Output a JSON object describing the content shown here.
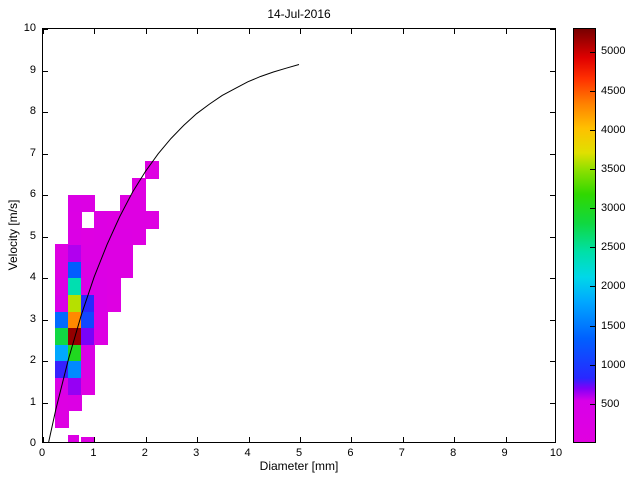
{
  "chart_data": {
    "type": "heatmap",
    "title": "14-Jul-2016",
    "xlabel": "Diameter [mm]",
    "ylabel": "Velocity [m/s]",
    "xlim": [
      0,
      10
    ],
    "ylim": [
      0,
      10
    ],
    "xticks": [
      0,
      1,
      2,
      3,
      4,
      5,
      6,
      7,
      8,
      9,
      10
    ],
    "yticks": [
      0,
      1,
      2,
      3,
      4,
      5,
      6,
      7,
      8,
      9,
      10
    ],
    "grid": false,
    "legend": "colorbar-right",
    "curve_name": "terminal-velocity-curve",
    "curve_color": "#000000",
    "curve_points": [
      [
        0.11,
        0.0
      ],
      [
        0.25,
        0.79
      ],
      [
        0.5,
        2.02
      ],
      [
        0.75,
        3.08
      ],
      [
        1.0,
        4.0
      ],
      [
        1.25,
        4.78
      ],
      [
        1.5,
        5.46
      ],
      [
        1.75,
        6.05
      ],
      [
        2.0,
        6.55
      ],
      [
        2.25,
        6.98
      ],
      [
        2.5,
        7.35
      ],
      [
        2.75,
        7.67
      ],
      [
        3.0,
        7.95
      ],
      [
        3.25,
        8.18
      ],
      [
        3.5,
        8.39
      ],
      [
        3.75,
        8.56
      ],
      [
        4.0,
        8.72
      ],
      [
        4.25,
        8.85
      ],
      [
        4.5,
        8.96
      ],
      [
        4.75,
        9.05
      ],
      [
        5.0,
        9.14
      ]
    ],
    "colorbar": {
      "vmin": 0,
      "vmax": 5300,
      "ticks": [
        500,
        1000,
        1500,
        2000,
        2500,
        3000,
        3500,
        4000,
        4500,
        5000
      ],
      "stops": [
        [
          0.0,
          "#E000E0"
        ],
        [
          0.1,
          "#D800E8"
        ],
        [
          0.13,
          "#8000F8"
        ],
        [
          0.155,
          "#2828FF"
        ],
        [
          0.25,
          "#0060FF"
        ],
        [
          0.34,
          "#00A8FF"
        ],
        [
          0.4,
          "#00D8E8"
        ],
        [
          0.46,
          "#00E0A8"
        ],
        [
          0.53,
          "#10D840"
        ],
        [
          0.6,
          "#30D800"
        ],
        [
          0.66,
          "#90E000"
        ],
        [
          0.7,
          "#E0E000"
        ],
        [
          0.76,
          "#FFC000"
        ],
        [
          0.82,
          "#FF8000"
        ],
        [
          0.88,
          "#FF3000"
        ],
        [
          0.93,
          "#E00000"
        ],
        [
          1.0,
          "#780000"
        ]
      ]
    },
    "cells": [
      [
        0.25,
        0.4,
        0.25,
        0.4,
        120
      ],
      [
        0.25,
        0.8,
        0.25,
        0.4,
        200
      ],
      [
        0.25,
        1.2,
        0.25,
        0.4,
        400
      ],
      [
        0.25,
        1.6,
        0.25,
        0.4,
        800
      ],
      [
        0.25,
        2.0,
        0.25,
        0.4,
        1800
      ],
      [
        0.25,
        2.4,
        0.25,
        0.4,
        2800
      ],
      [
        0.25,
        2.8,
        0.25,
        0.4,
        1400
      ],
      [
        0.25,
        3.2,
        0.25,
        0.4,
        500
      ],
      [
        0.25,
        3.6,
        0.25,
        0.4,
        260
      ],
      [
        0.25,
        4.0,
        0.25,
        0.4,
        160
      ],
      [
        0.25,
        4.4,
        0.25,
        0.4,
        120
      ],
      [
        0.5,
        0.0,
        0.2,
        0.2,
        260
      ],
      [
        0.5,
        0.8,
        0.25,
        0.4,
        260
      ],
      [
        0.5,
        1.2,
        0.25,
        0.4,
        650
      ],
      [
        0.5,
        1.6,
        0.25,
        0.4,
        1600
      ],
      [
        0.5,
        2.0,
        0.25,
        0.4,
        3000
      ],
      [
        0.5,
        2.4,
        0.25,
        0.4,
        5200
      ],
      [
        0.5,
        2.8,
        0.25,
        0.4,
        4300
      ],
      [
        0.5,
        3.2,
        0.25,
        0.4,
        3600
      ],
      [
        0.5,
        3.6,
        0.25,
        0.4,
        2400
      ],
      [
        0.5,
        4.0,
        0.25,
        0.4,
        1300
      ],
      [
        0.5,
        4.4,
        0.25,
        0.4,
        600
      ],
      [
        0.5,
        4.8,
        0.25,
        0.4,
        320
      ],
      [
        0.5,
        5.2,
        0.25,
        0.4,
        260
      ],
      [
        0.5,
        5.6,
        0.25,
        0.4,
        300
      ],
      [
        0.75,
        0.0,
        0.25,
        0.15,
        200
      ],
      [
        0.75,
        1.2,
        0.25,
        0.4,
        150
      ],
      [
        0.75,
        1.6,
        0.25,
        0.4,
        260
      ],
      [
        0.75,
        2.0,
        0.25,
        0.4,
        420
      ],
      [
        0.75,
        2.4,
        0.25,
        0.4,
        700
      ],
      [
        0.75,
        2.8,
        0.25,
        0.4,
        1100
      ],
      [
        0.75,
        3.2,
        0.25,
        0.4,
        820
      ],
      [
        0.75,
        3.6,
        0.25,
        0.4,
        430
      ],
      [
        0.75,
        4.0,
        0.25,
        0.4,
        260
      ],
      [
        0.75,
        4.4,
        0.25,
        0.4,
        190
      ],
      [
        0.75,
        4.8,
        0.25,
        0.4,
        160
      ],
      [
        0.75,
        5.6,
        0.25,
        0.4,
        280
      ],
      [
        1.0,
        2.4,
        0.25,
        0.4,
        180
      ],
      [
        1.0,
        2.8,
        0.25,
        0.4,
        280
      ],
      [
        1.0,
        3.2,
        0.25,
        0.4,
        340
      ],
      [
        1.0,
        3.6,
        0.25,
        0.4,
        300
      ],
      [
        1.0,
        4.0,
        0.25,
        0.4,
        250
      ],
      [
        1.0,
        4.4,
        0.25,
        0.4,
        210
      ],
      [
        1.0,
        4.8,
        0.25,
        0.4,
        180
      ],
      [
        1.0,
        5.2,
        0.25,
        0.4,
        200
      ],
      [
        1.25,
        3.2,
        0.25,
        0.4,
        150
      ],
      [
        1.25,
        3.6,
        0.25,
        0.4,
        190
      ],
      [
        1.25,
        4.0,
        0.25,
        0.4,
        220
      ],
      [
        1.25,
        4.4,
        0.25,
        0.4,
        200
      ],
      [
        1.25,
        4.8,
        0.25,
        0.4,
        180
      ],
      [
        1.25,
        5.2,
        0.25,
        0.4,
        160
      ],
      [
        1.5,
        4.0,
        0.25,
        0.4,
        140
      ],
      [
        1.5,
        4.4,
        0.25,
        0.4,
        160
      ],
      [
        1.5,
        4.8,
        0.25,
        0.4,
        170
      ],
      [
        1.5,
        5.2,
        0.25,
        0.4,
        150
      ],
      [
        1.5,
        5.6,
        0.25,
        0.4,
        150
      ],
      [
        1.75,
        4.8,
        0.25,
        0.4,
        140
      ],
      [
        1.75,
        5.2,
        0.25,
        0.4,
        150
      ],
      [
        1.75,
        5.6,
        0.25,
        0.4,
        160
      ],
      [
        1.75,
        6.0,
        0.25,
        0.4,
        150
      ],
      [
        2.0,
        5.2,
        0.25,
        0.4,
        130
      ],
      [
        2.0,
        6.4,
        0.25,
        0.4,
        140
      ]
    ]
  }
}
